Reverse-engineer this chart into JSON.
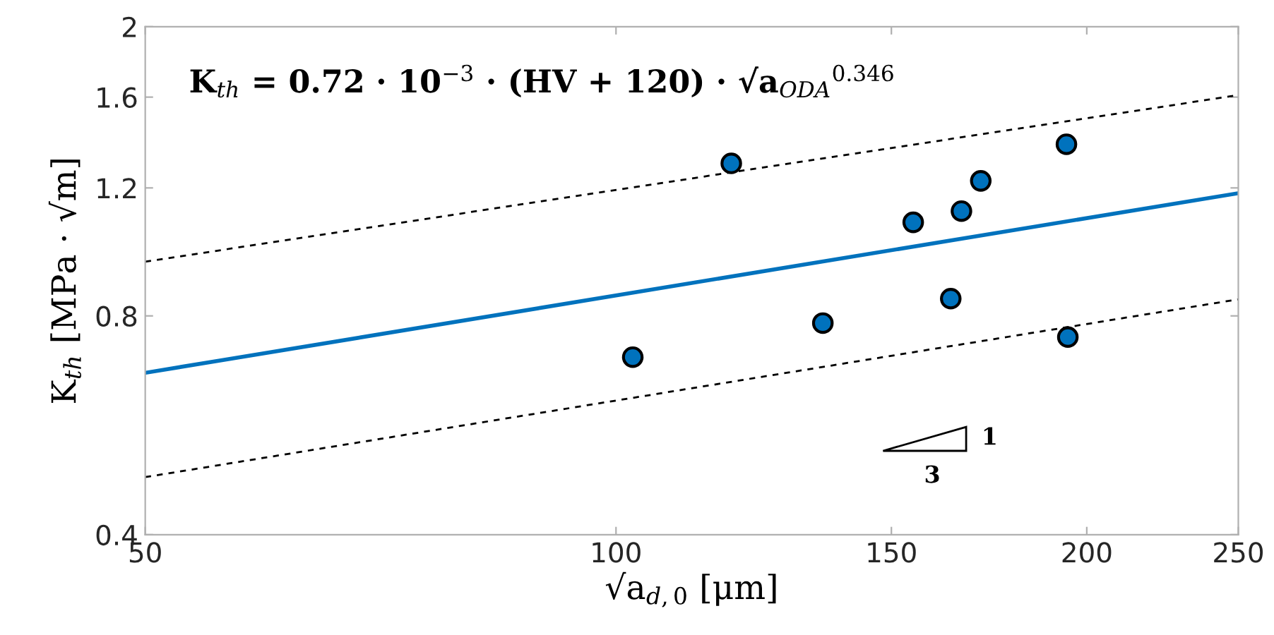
{
  "chart_data": {
    "type": "scatter",
    "xlabel": "√a$_{d,0}$ [μm]",
    "ylabel": "K$_{th}$ [MPa · √m]",
    "annotations": [
      "K$_{th}$ = 0.72 · 10$^{−3}$ · (HV + 120) · √a$_{ODA}$$^{0.346}$",
      "1",
      "3"
    ],
    "log": "xy",
    "grid": false,
    "xlim": [
      50,
      250
    ],
    "xticks": [
      50,
      100,
      150,
      200,
      250
    ],
    "ylim": [
      0.4,
      2
    ],
    "yticks": [
      0.4,
      0.8,
      1.2,
      1.6,
      2
    ],
    "series": [
      {
        "color": "#0072bd",
        "marker": "circle",
        "x": [
          102.5,
          118.5,
          135.6,
          154.9,
          163.7,
          166.3,
          171.1,
          194.1,
          194.5
        ],
        "values": [
          0.702,
          1.297,
          0.782,
          1.076,
          0.845,
          1.115,
          1.227,
          1.378,
          0.748
        ]
      },
      {
        "type": "line",
        "color": "#0072bd",
        "line_style": "solid",
        "x": [
          50,
          250
        ],
        "values": [
          0.668,
          1.18
        ]
      },
      {
        "type": "line",
        "color": "#000000",
        "line_style": "dashed",
        "x": [
          50,
          250
        ],
        "values": [
          0.95,
          1.61
        ]
      },
      {
        "type": "line",
        "color": "#000000",
        "line_style": "dashed",
        "x": [
          50,
          250
        ],
        "values": [
          0.48,
          0.843
        ]
      }
    ]
  }
}
